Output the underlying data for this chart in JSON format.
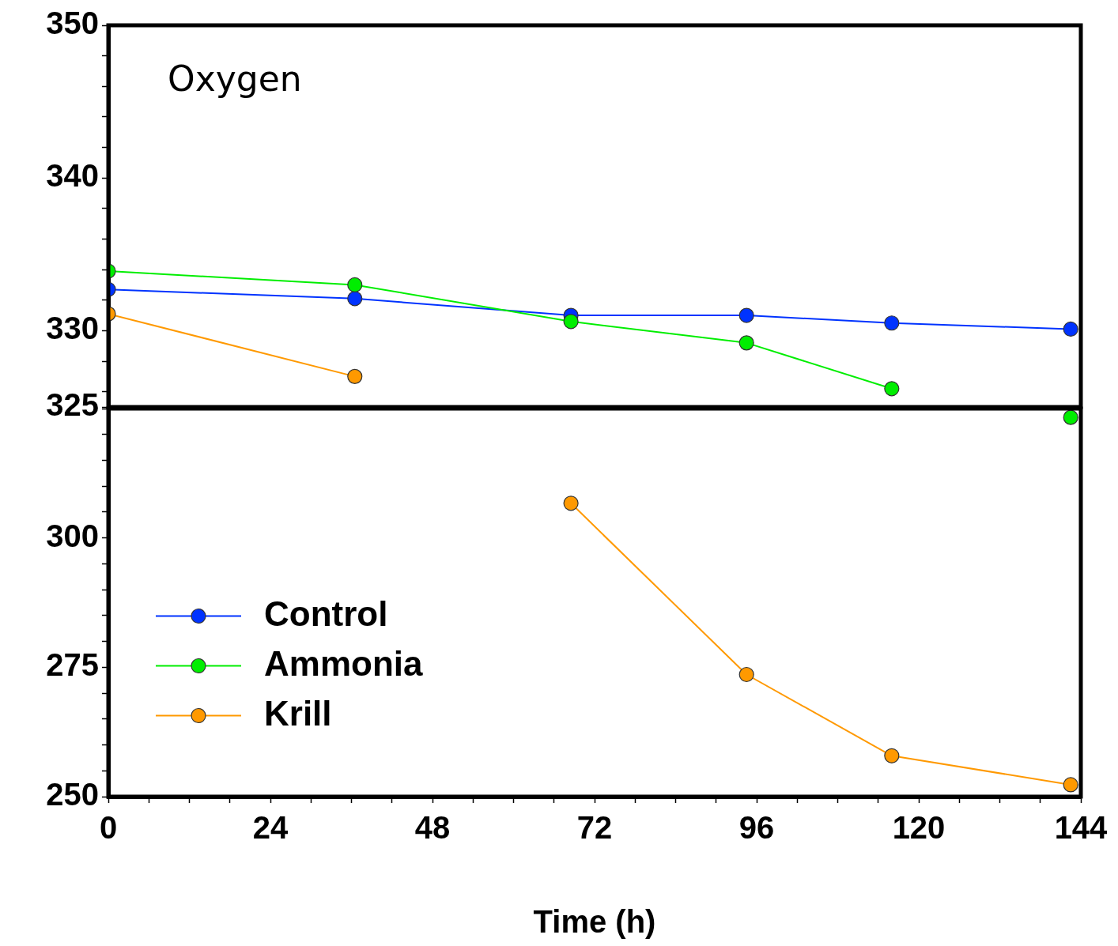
{
  "chart_data": [
    {
      "type": "line",
      "annotations": [
        "Oxygen"
      ],
      "xlim": [
        0,
        144
      ],
      "ylim": [
        325,
        350
      ],
      "yticks": [
        325,
        {
          "value": 326,
          "label": null
        },
        {
          "value": 328,
          "label": null
        },
        330,
        {
          "value": 332,
          "label": null
        },
        {
          "value": 334,
          "label": null
        },
        {
          "value": 336,
          "label": null
        },
        {
          "value": 338,
          "label": null
        },
        340,
        {
          "value": 342,
          "label": null
        },
        {
          "value": 344,
          "label": null
        },
        {
          "value": 346,
          "label": null
        },
        {
          "value": 348,
          "label": null
        },
        350
      ],
      "series": [
        {
          "color": "#0033ff",
          "x": [
            0,
            36.5,
            68.5,
            94.5,
            116,
            142.5
          ],
          "values": [
            332.7,
            332.1,
            331.0,
            331.0,
            330.5,
            330.1
          ]
        },
        {
          "color": "#00ee00",
          "x": [
            0,
            36.5,
            68.5,
            94.5,
            116
          ],
          "values": [
            333.9,
            333.0,
            330.6,
            329.2,
            326.2
          ]
        },
        {
          "color": "#ff9900",
          "x": [
            0,
            36.5
          ],
          "values": [
            331.1,
            327.0
          ]
        }
      ],
      "marker": "circle",
      "grid": false,
      "legend": false,
      "tick_labels": "y"
    },
    {
      "type": "line",
      "xlabel": "Time (h)",
      "xlim": [
        0,
        144
      ],
      "xticks": [
        0,
        {
          "value": 6,
          "label": null
        },
        {
          "value": 12,
          "label": null
        },
        {
          "value": 18,
          "label": null
        },
        24,
        {
          "value": 30,
          "label": null
        },
        {
          "value": 36,
          "label": null
        },
        {
          "value": 42,
          "label": null
        },
        48,
        {
          "value": 54,
          "label": null
        },
        {
          "value": 60,
          "label": null
        },
        {
          "value": 66,
          "label": null
        },
        72,
        {
          "value": 78,
          "label": null
        },
        {
          "value": 84,
          "label": null
        },
        {
          "value": 90,
          "label": null
        },
        96,
        {
          "value": 102,
          "label": null
        },
        {
          "value": 108,
          "label": null
        },
        {
          "value": 114,
          "label": null
        },
        120,
        {
          "value": 126,
          "label": null
        },
        {
          "value": 132,
          "label": null
        },
        {
          "value": 138,
          "label": null
        },
        144
      ],
      "ylim": [
        250,
        325
      ],
      "yticks": [
        250,
        {
          "value": 255,
          "label": null
        },
        {
          "value": 260,
          "label": null
        },
        {
          "value": 265,
          "label": null
        },
        {
          "value": 270,
          "label": null
        },
        275,
        {
          "value": 280,
          "label": null
        },
        {
          "value": 285,
          "label": null
        },
        {
          "value": 290,
          "label": null
        },
        {
          "value": 295,
          "label": null
        },
        300,
        {
          "value": 305,
          "label": null
        },
        {
          "value": 310,
          "label": null
        },
        {
          "value": 315,
          "label": null
        },
        {
          "value": 320,
          "label": null
        },
        {
          "value": 325,
          "label": null
        }
      ],
      "series": [
        {
          "name": "Control",
          "color": "#0033ff"
        },
        {
          "name": "Ammonia",
          "color": "#00ee00",
          "x": [
            142.5
          ],
          "values": [
            323.3
          ]
        },
        {
          "name": "Krill",
          "color": "#ff9900",
          "x": [
            68.5,
            94.5,
            116,
            142.5
          ],
          "values": [
            306.7,
            273.6,
            257.9,
            252.3
          ]
        }
      ],
      "marker": "circle",
      "grid": false,
      "legend": "left"
    }
  ]
}
